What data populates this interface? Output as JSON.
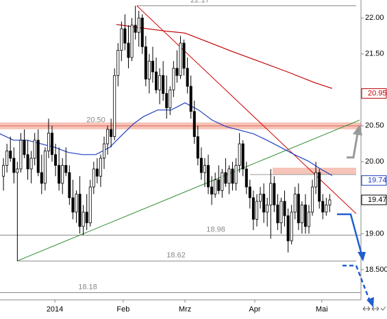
{
  "chart_data": {
    "type": "candlestick",
    "up_color": "#ffffff",
    "down_color": "#000000",
    "ylim": [
      18.08,
      22.25
    ],
    "xlim": [
      -1,
      103
    ],
    "yticks": [
      {
        "value": 22,
        "label": "22.00"
      },
      {
        "value": 21.5,
        "label": "21.50"
      },
      {
        "value": 20.5,
        "label": "20.50"
      },
      {
        "value": 20,
        "label": "20.00"
      },
      {
        "value": 19,
        "label": "19.00"
      },
      {
        "value": 18.5,
        "label": "18.500"
      }
    ],
    "xticks": [
      {
        "value": 14.8,
        "label": "2014"
      },
      {
        "value": 34.5,
        "label": "Feb"
      },
      {
        "value": 52.3,
        "label": "Mrz"
      },
      {
        "value": 72.4,
        "label": "Apr"
      },
      {
        "value": 91.7,
        "label": "Mai"
      }
    ],
    "open": [
      19.8,
      19.95,
      20.15,
      20.05,
      19.85,
      19.9,
      20.3,
      20.1,
      19.9,
      20.05,
      20.3,
      19.85,
      19.7,
      20.15,
      20.4,
      20.1,
      19.95,
      19.7,
      19.95,
      19.85,
      19.5,
      19.3,
      19.55,
      19.1,
      19.3,
      19.15,
      19.65,
      19.9,
      19.8,
      20.05,
      20.25,
      20.45,
      20.35,
      21.2,
      21.55,
      21.85,
      21.65,
      21.45,
      21.9,
      21.8,
      22.0,
      21.6,
      21.15,
      21.4,
      21.25,
      21.0,
      21.2,
      20.95,
      20.75,
      21.0,
      21.3,
      21.2,
      21.65,
      21.3,
      21.05,
      20.7,
      20.35,
      20.05,
      19.85,
      19.95,
      19.65,
      19.55,
      19.75,
      19.6,
      19.85,
      19.7,
      19.9,
      19.7,
      19.95,
      20.25,
      19.9,
      19.65,
      19.5,
      19.2,
      19.45,
      19.55,
      19.3,
      19.4,
      19.7,
      19.4,
      19.15,
      19.45,
      19.25,
      18.9,
      19.3,
      19.55,
      19.15,
      19.4,
      19.1,
      19.3,
      19.65,
      19.85,
      19.45,
      19.3,
      19.4
    ],
    "high": [
      20.05,
      20.25,
      20.35,
      20.2,
      20.0,
      20.4,
      20.45,
      20.3,
      20.15,
      20.4,
      20.45,
      20.1,
      20.2,
      20.6,
      20.5,
      20.25,
      20.2,
      20.05,
      20.2,
      19.95,
      19.75,
      19.6,
      19.8,
      19.4,
      19.55,
      19.75,
      20.0,
      20.05,
      20.1,
      20.35,
      20.5,
      20.6,
      21.3,
      21.65,
      21.95,
      22.05,
      21.9,
      22.0,
      22.17,
      22.1,
      22.05,
      21.75,
      21.5,
      21.6,
      21.45,
      21.3,
      21.4,
      21.2,
      21.05,
      21.4,
      21.55,
      21.75,
      21.7,
      21.45,
      21.2,
      20.85,
      20.5,
      20.2,
      20.05,
      20.1,
      19.8,
      19.85,
      19.95,
      19.9,
      20.05,
      19.95,
      20.0,
      20.05,
      20.4,
      20.3,
      20.0,
      19.75,
      19.6,
      19.55,
      19.65,
      19.7,
      19.5,
      19.9,
      19.8,
      19.55,
      19.5,
      19.6,
      19.35,
      19.4,
      19.65,
      19.7,
      19.45,
      19.55,
      19.4,
      19.75,
      20.0,
      19.9,
      19.55,
      19.5,
      19.55
    ],
    "low": [
      19.6,
      19.85,
      20.0,
      19.7,
      18.62,
      19.85,
      20.05,
      19.75,
      19.7,
      19.95,
      19.8,
      19.55,
      19.6,
      20.05,
      20.0,
      19.8,
      19.6,
      19.55,
      19.8,
      19.4,
      19.2,
      19.15,
      19.0,
      18.98,
      19.05,
      19.1,
      19.55,
      19.7,
      19.65,
      19.9,
      20.1,
      20.2,
      20.3,
      21.05,
      21.4,
      21.55,
      21.3,
      21.4,
      21.7,
      21.6,
      21.5,
      21.05,
      20.95,
      21.1,
      20.95,
      20.8,
      20.85,
      20.6,
      20.65,
      20.9,
      21.1,
      21.15,
      21.2,
      20.95,
      20.6,
      20.25,
      19.95,
      19.75,
      19.65,
      19.55,
      19.4,
      19.5,
      19.55,
      19.5,
      19.65,
      19.55,
      19.6,
      19.6,
      19.85,
      19.8,
      19.55,
      19.35,
      19.05,
      19.1,
      19.35,
      19.15,
      19.1,
      18.93,
      19.3,
      19.05,
      19.0,
      19.1,
      18.74,
      18.85,
      19.2,
      19.05,
      19.0,
      19.0,
      19.0,
      19.25,
      19.55,
      19.35,
      19.2,
      19.25,
      19.3
    ],
    "close": [
      19.95,
      20.15,
      20.05,
      19.85,
      19.9,
      20.3,
      20.1,
      19.9,
      20.05,
      20.3,
      19.85,
      19.7,
      20.15,
      20.4,
      20.1,
      19.95,
      19.7,
      19.95,
      19.85,
      19.5,
      19.3,
      19.55,
      19.1,
      19.3,
      19.15,
      19.65,
      19.9,
      19.8,
      20.05,
      20.25,
      20.45,
      20.35,
      21.2,
      21.55,
      21.85,
      21.65,
      21.45,
      21.9,
      21.8,
      22.0,
      21.6,
      21.15,
      21.4,
      21.25,
      21.0,
      21.2,
      20.95,
      20.75,
      21.0,
      21.3,
      21.2,
      21.65,
      21.3,
      21.05,
      20.7,
      20.35,
      20.05,
      19.85,
      19.95,
      19.65,
      19.55,
      19.75,
      19.6,
      19.85,
      19.7,
      19.9,
      19.7,
      19.95,
      20.25,
      19.9,
      19.65,
      19.5,
      19.2,
      19.45,
      19.55,
      19.3,
      19.4,
      19.7,
      19.4,
      19.15,
      19.45,
      19.25,
      18.9,
      19.3,
      19.55,
      19.15,
      19.4,
      19.1,
      19.3,
      19.65,
      19.85,
      19.45,
      19.3,
      19.4,
      19.47
    ],
    "moving_averages": [
      {
        "color": "#c00000",
        "x": [
          32.5,
          38.4,
          46.3,
          52.3,
          58.2,
          66.1,
          74.0,
          81.8,
          89.7,
          94.7
        ],
        "values": [
          21.91,
          21.87,
          21.82,
          21.79,
          21.68,
          21.53,
          21.39,
          21.25,
          21.1,
          21.02
        ]
      },
      {
        "color": "#1f3fbf",
        "x": [
          -1,
          2.9,
          6.9,
          10.8,
          14.8,
          18.7,
          22.7,
          26.6,
          30.6,
          34.5,
          37.5,
          40.4,
          44.4,
          48.3,
          52.3,
          56.2,
          60.1,
          64.1,
          68.0,
          72.0,
          75.9,
          79.9,
          83.8,
          87.8,
          91.7,
          94.7
        ],
        "values": [
          20.39,
          20.3,
          20.3,
          20.25,
          20.2,
          20.13,
          20.1,
          20.1,
          20.2,
          20.39,
          20.53,
          20.63,
          20.72,
          20.72,
          20.82,
          20.72,
          20.58,
          20.49,
          20.44,
          20.39,
          20.3,
          20.2,
          20.1,
          20.01,
          19.89,
          19.81
        ]
      }
    ],
    "trendlines": [
      {
        "color": "#d00000",
        "x": [
          38.4,
          101.6
        ],
        "values": [
          22.17,
          19.28
        ]
      },
      {
        "color": "#2e8b2e",
        "x": [
          3.9,
          102.6
        ],
        "values": [
          18.62,
          20.58
        ]
      }
    ],
    "hlines": [
      {
        "value": 22.17,
        "label": "22.17"
      },
      {
        "value": 20.5,
        "label": "20.50"
      },
      {
        "value": 18.98,
        "label": "18.98"
      },
      {
        "value": 18.62,
        "label": "18.62"
      },
      {
        "value": 18.18,
        "label": "18.18"
      }
    ],
    "zone": 19.87,
    "price_boxes": [
      {
        "value": 20.95,
        "color": "#c00000"
      },
      {
        "value": 19.74,
        "color": "#1f3fbf"
      },
      {
        "value": 19.47,
        "color": "#000000"
      }
    ]
  }
}
